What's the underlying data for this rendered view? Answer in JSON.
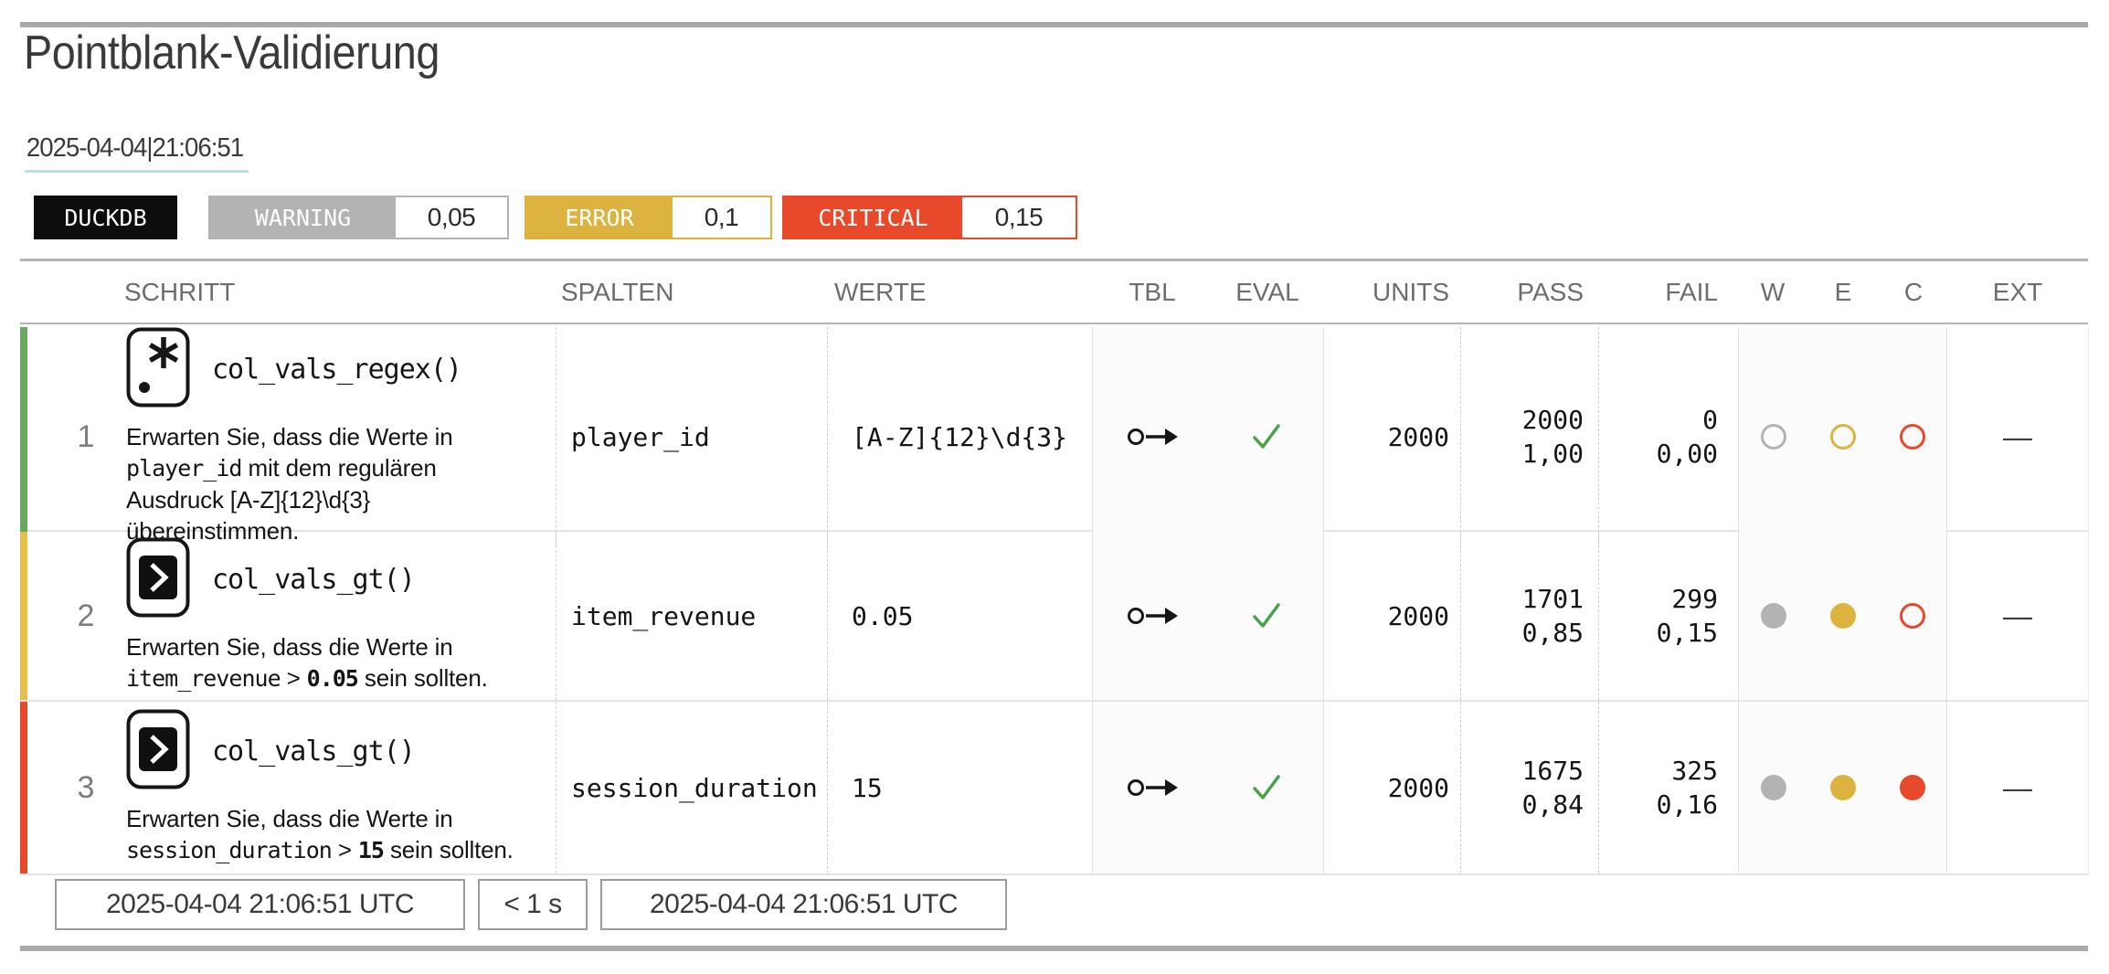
{
  "header": {
    "title": "Pointblank-Validierung",
    "datetime": "2025-04-04|21:06:51"
  },
  "badges": {
    "db_label": "DUCKDB",
    "thresholds": [
      {
        "name": "WARNING",
        "value": "0,05",
        "color": "#b3b3b3"
      },
      {
        "name": "ERROR",
        "value": "0,1",
        "color": "#dcb33e"
      },
      {
        "name": "CRITICAL",
        "value": "0,15",
        "color": "#e8492a"
      }
    ]
  },
  "table": {
    "columns": [
      "SCHRITT",
      "SPALTEN",
      "WERTE",
      "TBL",
      "EVAL",
      "UNITS",
      "PASS",
      "FAIL",
      "W",
      "E",
      "C",
      "EXT"
    ],
    "circle_colors": {
      "w": "#b3b3b3",
      "e": "#dcb33e",
      "c": "#e8492a"
    },
    "check_color": "#49a24b",
    "rows": [
      {
        "number": "1",
        "status_color": "#6aa75e",
        "icon": "regex",
        "function": "col_vals_regex()",
        "description": [
          {
            "t": "Erwarten Sie, dass die Werte in "
          },
          {
            "t": "player_id",
            "code": true
          },
          {
            "t": " mit dem regulären Ausdruck [A-Z]{12}\\d{3} übereinstimmen."
          }
        ],
        "column": "player_id",
        "values": "[A-Z]{12}\\d{3}",
        "tbl_icon": "unchanged",
        "eval": "check",
        "units": "2000",
        "pass": "2000",
        "pass_frac": "1,00",
        "fail": "0",
        "fail_frac": "0,00",
        "w": "open",
        "e": "open",
        "c": "open",
        "ext": "—"
      },
      {
        "number": "2",
        "status_color": "#e3c04a",
        "icon": "gt",
        "function": "col_vals_gt()",
        "description": [
          {
            "t": "Erwarten Sie, dass die Werte in "
          },
          {
            "t": "item_revenue",
            "code": true
          },
          {
            "t": " > "
          },
          {
            "t": "0.05",
            "code": true,
            "bold": true
          },
          {
            "t": " sein sollten."
          }
        ],
        "column": "item_revenue",
        "values": "0.05",
        "tbl_icon": "unchanged",
        "eval": "check",
        "units": "2000",
        "pass": "1701",
        "pass_frac": "0,85",
        "fail": "299",
        "fail_frac": "0,15",
        "w": "filled",
        "e": "filled",
        "c": "open",
        "ext": "—"
      },
      {
        "number": "3",
        "status_color": "#e8492a",
        "icon": "gt",
        "function": "col_vals_gt()",
        "description": [
          {
            "t": "Erwarten Sie, dass die Werte in "
          },
          {
            "t": "session_duration",
            "code": true
          },
          {
            "t": " > "
          },
          {
            "t": "15",
            "code": true,
            "bold": true
          },
          {
            "t": " sein sollten."
          }
        ],
        "column": "session_duration",
        "values": "15",
        "tbl_icon": "unchanged",
        "eval": "check",
        "units": "2000",
        "pass": "1675",
        "pass_frac": "0,84",
        "fail": "325",
        "fail_frac": "0,16",
        "w": "filled",
        "e": "filled",
        "c": "filled",
        "ext": "—"
      }
    ]
  },
  "footer": {
    "start_time": "2025-04-04 21:06:51 UTC",
    "duration": "< 1 s",
    "end_time": "2025-04-04 21:06:51 UTC"
  }
}
